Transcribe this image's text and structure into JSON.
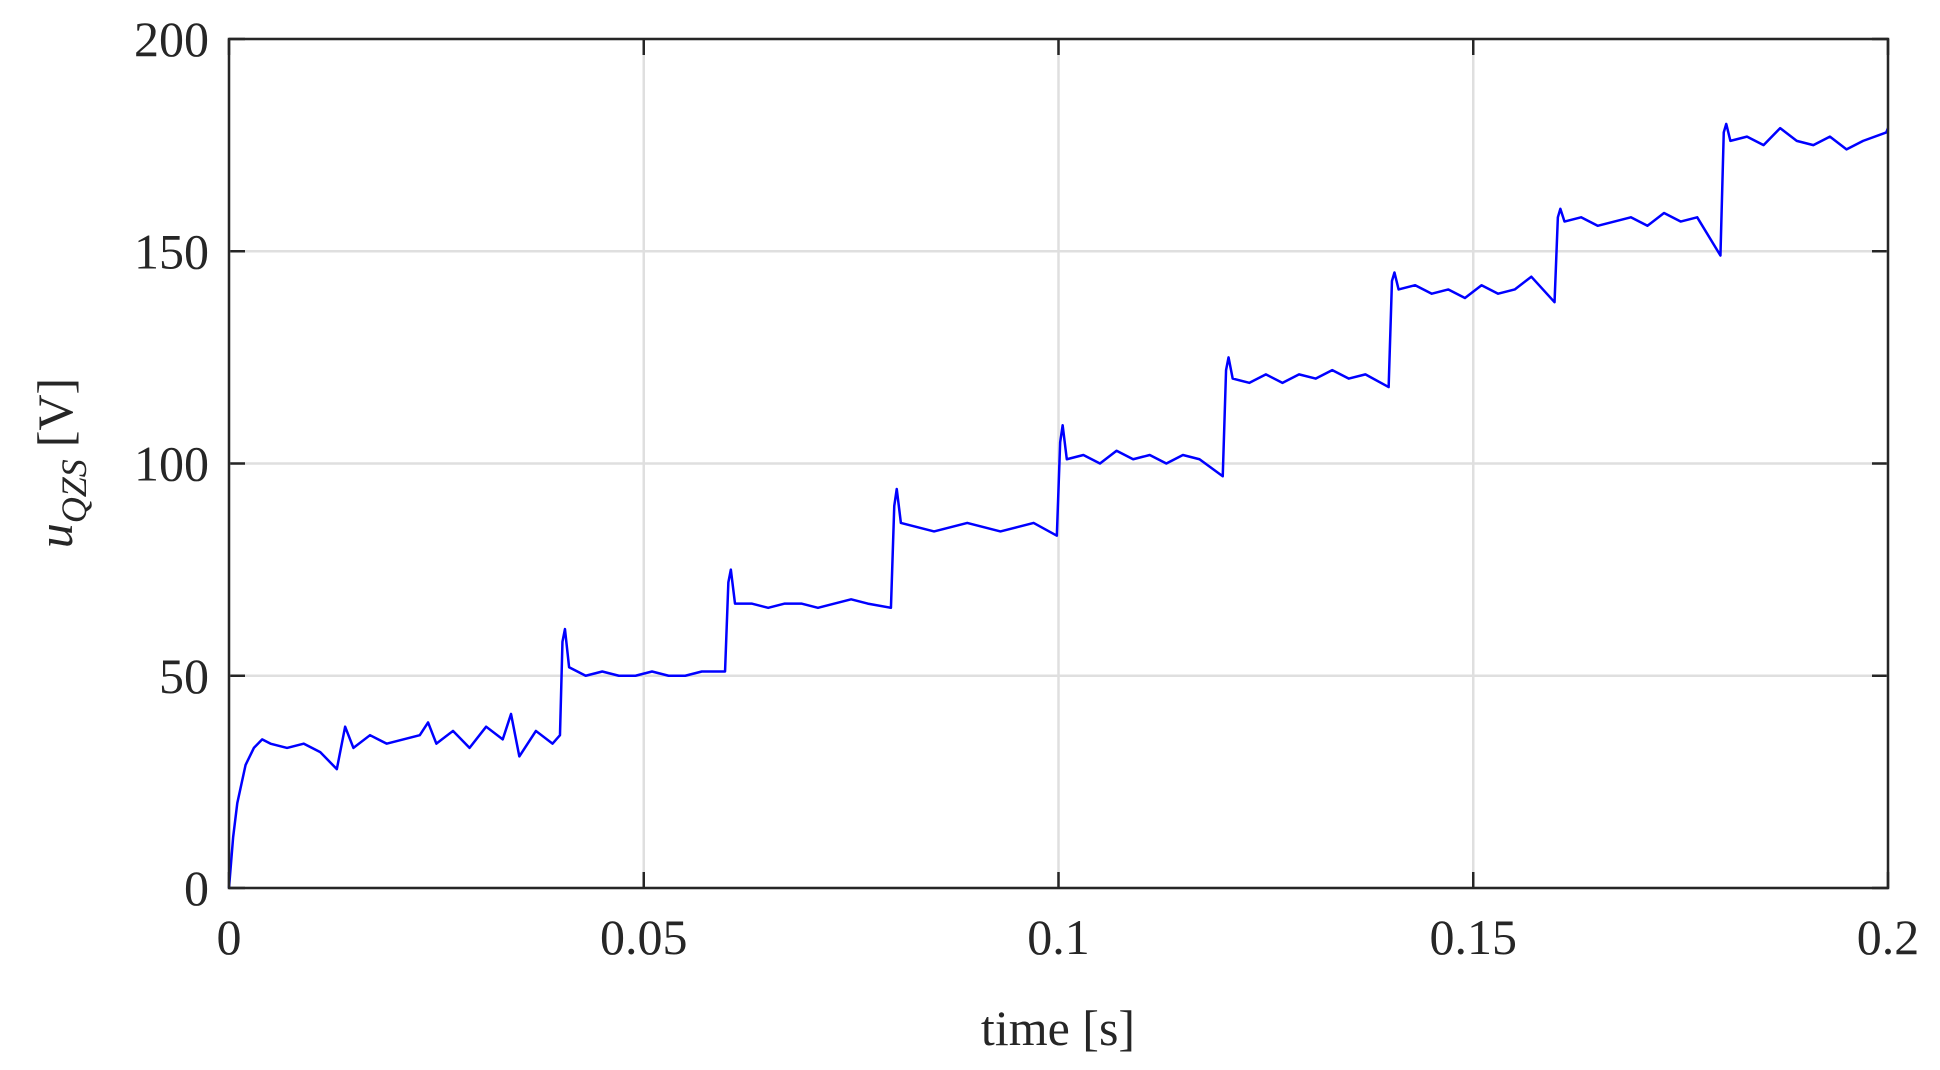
{
  "chart_data": {
    "type": "line",
    "xlabel": "time [s]",
    "ylabel": "u",
    "ylabel_subscript": "QZS",
    "ylabel_unit": "[V]",
    "xlim": [
      0,
      0.2
    ],
    "xticks": [
      0,
      0.05,
      0.1,
      0.15,
      0.2
    ],
    "ylim": [
      0,
      200
    ],
    "yticks": [
      0,
      50,
      100,
      150,
      200
    ],
    "grid": true,
    "color": "#0000ff",
    "x": [
      0,
      0.0005,
      0.001,
      0.002,
      0.003,
      0.004,
      0.005,
      0.007,
      0.009,
      0.011,
      0.012,
      0.013,
      0.014,
      0.015,
      0.017,
      0.019,
      0.021,
      0.023,
      0.024,
      0.025,
      0.027,
      0.029,
      0.031,
      0.033,
      0.034,
      0.035,
      0.037,
      0.039,
      0.0399,
      0.0402,
      0.0405,
      0.041,
      0.043,
      0.045,
      0.047,
      0.049,
      0.051,
      0.053,
      0.055,
      0.057,
      0.0598,
      0.0602,
      0.0605,
      0.061,
      0.063,
      0.065,
      0.067,
      0.069,
      0.071,
      0.073,
      0.075,
      0.077,
      0.0798,
      0.0802,
      0.0805,
      0.081,
      0.083,
      0.085,
      0.087,
      0.089,
      0.091,
      0.093,
      0.095,
      0.097,
      0.0998,
      0.1002,
      0.1005,
      0.101,
      0.103,
      0.105,
      0.107,
      0.109,
      0.111,
      0.113,
      0.115,
      0.117,
      0.1198,
      0.1202,
      0.1205,
      0.121,
      0.123,
      0.125,
      0.127,
      0.129,
      0.131,
      0.133,
      0.135,
      0.137,
      0.1398,
      0.1402,
      0.1405,
      0.141,
      0.143,
      0.145,
      0.147,
      0.149,
      0.151,
      0.153,
      0.155,
      0.157,
      0.1598,
      0.1602,
      0.1605,
      0.161,
      0.163,
      0.165,
      0.167,
      0.169,
      0.171,
      0.173,
      0.175,
      0.177,
      0.1798,
      0.1802,
      0.1805,
      0.181,
      0.183,
      0.185,
      0.187,
      0.189,
      0.191,
      0.193,
      0.195,
      0.197,
      0.1998,
      0.2
    ],
    "values": [
      0,
      12,
      20,
      29,
      33,
      35,
      34,
      33,
      34,
      32,
      30,
      28,
      38,
      33,
      36,
      34,
      35,
      36,
      39,
      34,
      37,
      33,
      38,
      35,
      41,
      31,
      37,
      34,
      36,
      58,
      61,
      52,
      50,
      51,
      50,
      50,
      51,
      50,
      50,
      51,
      51,
      72,
      75,
      67,
      67,
      66,
      67,
      67,
      66,
      67,
      68,
      67,
      66,
      90,
      94,
      86,
      85,
      84,
      85,
      86,
      85,
      84,
      85,
      86,
      83,
      105,
      109,
      101,
      102,
      100,
      103,
      101,
      102,
      100,
      102,
      101,
      97,
      122,
      125,
      120,
      119,
      121,
      119,
      121,
      120,
      122,
      120,
      121,
      118,
      143,
      145,
      141,
      142,
      140,
      141,
      139,
      142,
      140,
      141,
      144,
      138,
      158,
      160,
      157,
      158,
      156,
      157,
      158,
      156,
      159,
      157,
      158,
      149,
      178,
      180,
      176,
      177,
      175,
      179,
      176,
      175,
      177,
      174,
      176,
      178,
      179
    ]
  }
}
